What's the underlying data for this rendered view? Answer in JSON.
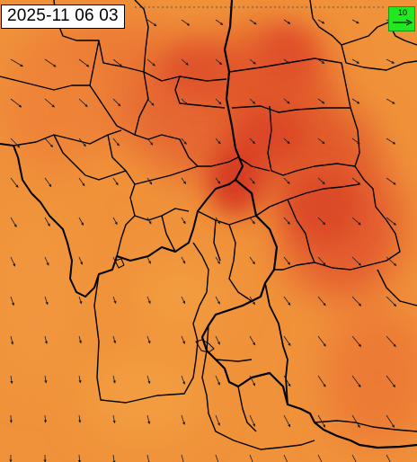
{
  "map": {
    "timestamp": "2025-11 06 03",
    "wind_scale": {
      "label": "10",
      "color": "#22e822"
    },
    "colors": {
      "field_light": "#f0923a",
      "field_mid": "#ec7a34",
      "field_dark": "#df4f2a",
      "field_peak": "#d63a24",
      "border": "#000000",
      "arrow": "#1a1a1a"
    },
    "icons": [
      "wind-arrow-icon"
    ]
  }
}
